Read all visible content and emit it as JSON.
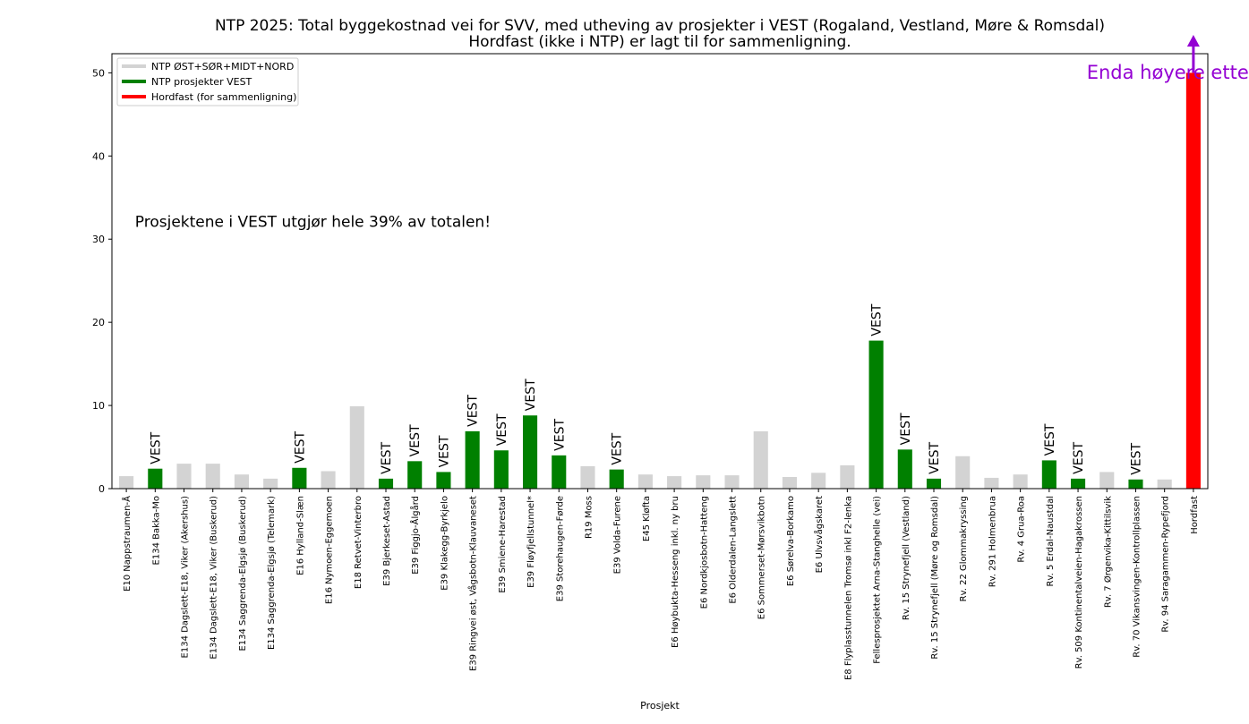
{
  "chart_data": {
    "type": "bar",
    "title": "NTP 2025: Total byggekostnad vei for SVV, med utheving av prosjekter i VEST (Rogaland, Vestland, Møre & Romsdal)",
    "subtitle": "Hordfast (ikke i NTP) er lagt til for sammenligning.",
    "xlabel": "Prosjekt",
    "ylabel": "",
    "ylim": [
      0,
      52.3
    ],
    "yticks": [
      0,
      10,
      20,
      30,
      40,
      50
    ],
    "grid": false,
    "legend": {
      "position": "top-left",
      "entries": [
        {
          "label": "NTP ØST+SØR+MIDT+NORD",
          "color": "#d3d3d3"
        },
        {
          "label": "NTP prosjekter VEST",
          "color": "#008000"
        },
        {
          "label": "Hordfast (for sammenligning)",
          "color": "#ff0000"
        }
      ]
    },
    "colors": {
      "other": "#d3d3d3",
      "vest": "#008000",
      "hordfast": "#ff0000",
      "arrow": "#9400d3"
    },
    "bar_label_text": "VEST",
    "categories": [
      "E10 Nappstraumen-Å",
      "E134 Bakka-Mo",
      "E134 Dagslett-E18, Viker (Akershus)",
      "E134 Dagslett-E18, Viker (Buskerud)",
      "E134 Saggrenda-Elgsjø (Buskerud)",
      "E134 Saggrenda-Elgsjø (Telemark)",
      "E16 Hylland-Slæn",
      "E16 Nymoen-Eggemoen",
      "E18 Retvet-Vinterbro",
      "E39 Bjerkeset-Astad",
      "E39 Figgjo-Ålgård",
      "E39 Klakegg-Byrkjelo",
      "E39 Ringvei øst, Vågsbotn-Klauvaneset",
      "E39 Smiene-Harestad",
      "E39 Fløyfjellstunnel*",
      "E39 Storehaugen-Førde",
      "R19 Moss",
      "E39 Volda-Furene",
      "E45 Kløfta",
      "E6 Høybukta-Hesseng inkl. ny bru",
      "E6 Nordkjosbotn-Hatteng",
      "E6 Olderdalen-Langslett",
      "E6 Sommerset-Mørsvikbotn",
      "E6 Sørelva-Borkamo",
      "E6 Ulvsvågskaret",
      "E8 Flyplasstunnelen Tromsø inkl F2-lenka",
      "Fellesprosjektet Arna-Stanghelle (vei)",
      "Rv. 15 Strynefjell (Vestland)",
      "Rv. 15 Strynefjell (Møre og Romsdal)",
      "Rv. 22 Glommakryssing",
      "Rv. 291 Holmenbrua",
      "Rv. 4 Grua-Roa",
      "Rv. 5 Erdal-Naustdal",
      "Rv. 509 Kontinentalveien-Hagakrossen",
      "Rv. 7 Ørgenvika-Kittilsvik",
      "Rv. 70 Vikansvingen-Kontrollplassen",
      "Rv. 94 Saragammen-Rypefjord",
      "Hordfast"
    ],
    "values": [
      1.5,
      2.4,
      3.0,
      3.0,
      1.7,
      1.2,
      2.5,
      2.1,
      9.9,
      1.2,
      3.3,
      2.0,
      6.9,
      4.6,
      8.8,
      4.0,
      2.7,
      2.3,
      1.7,
      1.5,
      1.6,
      1.6,
      6.9,
      1.4,
      1.9,
      2.8,
      17.8,
      4.7,
      1.2,
      3.9,
      1.3,
      1.7,
      3.4,
      1.2,
      2.0,
      1.1,
      1.1,
      50.0
    ],
    "groups": [
      "other",
      "vest",
      "other",
      "other",
      "other",
      "other",
      "vest",
      "other",
      "other",
      "vest",
      "vest",
      "vest",
      "vest",
      "vest",
      "vest",
      "vest",
      "other",
      "vest",
      "other",
      "other",
      "other",
      "other",
      "other",
      "other",
      "other",
      "other",
      "vest",
      "vest",
      "vest",
      "other",
      "other",
      "other",
      "vest",
      "vest",
      "other",
      "vest",
      "other",
      "hordfast"
    ],
    "annotations": [
      {
        "text": "Prosjektene i VEST utgjør hele 39% av totalen!",
        "x_category_index": 0.8,
        "y": 31.5
      },
      {
        "text": "Enda høyere etter tall fra reg. plan",
        "x_category_index": 33.8,
        "y": 49.3
      }
    ]
  }
}
